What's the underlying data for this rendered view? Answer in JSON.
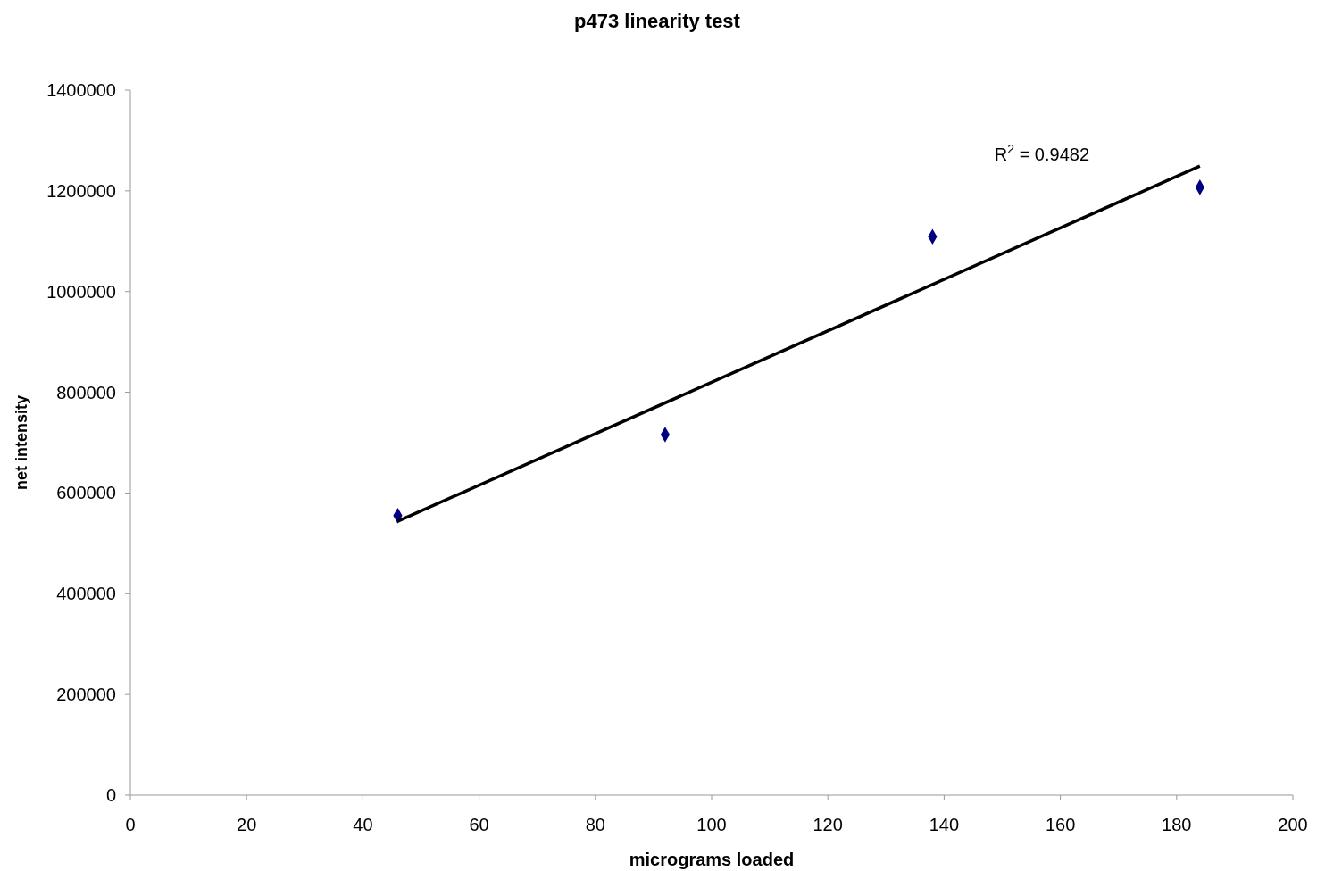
{
  "chart_data": {
    "type": "scatter",
    "title": "p473 linearity test",
    "xlabel": "micrograms loaded",
    "ylabel": "net intensity",
    "series": [
      {
        "color": "#000080",
        "marker": "diamond",
        "x": [
          46,
          92,
          138,
          184
        ],
        "values": [
          555000,
          716000,
          1109000,
          1207000
        ]
      },
      {
        "type": "line",
        "color": "#000000",
        "marker": "none",
        "line_style": "solid",
        "x": [
          46,
          184
        ],
        "values": [
          544000,
          1249000
        ]
      }
    ],
    "annotations": [
      "R$^{2}$ = 0.9482"
    ],
    "xlim": [
      0,
      200
    ],
    "xticks": [
      0,
      20,
      40,
      60,
      80,
      100,
      120,
      140,
      160,
      180,
      200
    ],
    "ylim": [
      0,
      1400000
    ],
    "yticks": [
      0,
      200000,
      400000,
      600000,
      800000,
      1000000,
      1200000,
      1400000
    ],
    "grid": false
  }
}
